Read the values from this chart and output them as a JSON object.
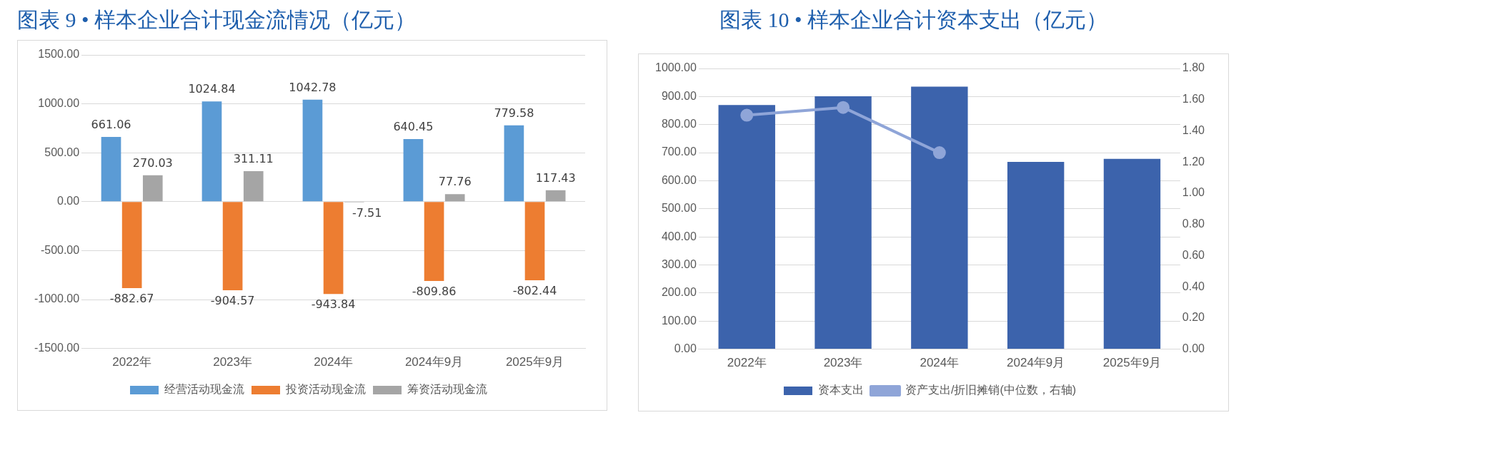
{
  "chart_data": [
    {
      "type": "bar",
      "title": "图表 9 • 样本企业合计现金流情况（亿元）",
      "categories": [
        "2022年",
        "2023年",
        "2024年",
        "2024年9月",
        "2025年9月"
      ],
      "series": [
        {
          "name": "经营活动现金流",
          "color": "#5b9bd5",
          "values": [
            661.06,
            1024.84,
            1042.78,
            640.45,
            779.58
          ]
        },
        {
          "name": "投资活动现金流",
          "color": "#ed7d31",
          "values": [
            -882.67,
            -904.57,
            -943.84,
            -809.86,
            -802.44
          ]
        },
        {
          "name": "筹资活动现金流",
          "color": "#a5a5a5",
          "values": [
            270.03,
            311.11,
            -7.51,
            77.76,
            117.43
          ]
        }
      ],
      "ylim": [
        -1500,
        1500
      ],
      "yticks": [
        {
          "value": -1500,
          "label": "-1500.00"
        },
        {
          "value": -1000,
          "label": "-1000.00"
        },
        {
          "value": -500,
          "label": "-500.00"
        },
        {
          "value": 0,
          "label": "0.00"
        },
        {
          "value": 500,
          "label": "500.00"
        },
        {
          "value": 1000,
          "label": "1000.00"
        },
        {
          "value": 1500,
          "label": "1500.00"
        }
      ],
      "grid": "y",
      "legend": "bottom",
      "data_labels": true
    },
    {
      "type": "bar",
      "title": "图表 10 • 样本企业合计资本支出（亿元）",
      "categories": [
        "2022年",
        "2023年",
        "2024年",
        "2024年9月",
        "2025年9月"
      ],
      "series": [
        {
          "name": "资本支出",
          "color": "#3c63ac",
          "values": [
            870,
            901,
            935,
            667,
            678
          ]
        },
        {
          "name": "资产支出/折旧摊销(中位数，右轴)",
          "type": "line",
          "axis": "y2",
          "color": "#8fa5d8",
          "values": [
            1.5,
            1.55,
            1.26,
            null,
            null
          ]
        }
      ],
      "ylim": [
        0,
        1000
      ],
      "yticks": [
        {
          "value": 0,
          "label": "0.00"
        },
        {
          "value": 100,
          "label": "100.00"
        },
        {
          "value": 200,
          "label": "200.00"
        },
        {
          "value": 300,
          "label": "300.00"
        },
        {
          "value": 400,
          "label": "400.00"
        },
        {
          "value": 500,
          "label": "500.00"
        },
        {
          "value": 600,
          "label": "600.00"
        },
        {
          "value": 700,
          "label": "700.00"
        },
        {
          "value": 800,
          "label": "800.00"
        },
        {
          "value": 900,
          "label": "900.00"
        },
        {
          "value": 1000,
          "label": "1000.00"
        }
      ],
      "y2lim": [
        0,
        1.8
      ],
      "y2ticks": [
        {
          "value": 0,
          "label": "0.00"
        },
        {
          "value": 0.2,
          "label": "0.20"
        },
        {
          "value": 0.4,
          "label": "0.40"
        },
        {
          "value": 0.6,
          "label": "0.60"
        },
        {
          "value": 0.8,
          "label": "0.80"
        },
        {
          "value": 1.0,
          "label": "1.00"
        },
        {
          "value": 1.2,
          "label": "1.20"
        },
        {
          "value": 1.4,
          "label": "1.40"
        },
        {
          "value": 1.6,
          "label": "1.60"
        },
        {
          "value": 1.8,
          "label": "1.80"
        }
      ],
      "grid": "y",
      "legend": "bottom",
      "marker": "circle"
    }
  ]
}
